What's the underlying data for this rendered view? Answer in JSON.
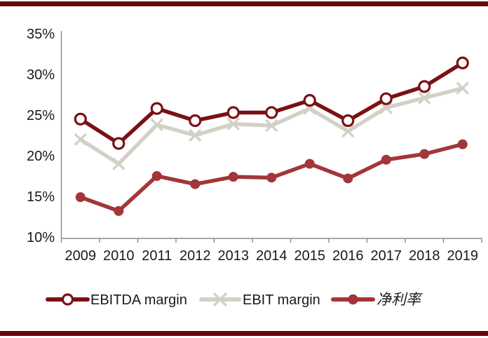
{
  "page": {
    "background": "#ffffff",
    "accent_bar_color": "#65090F",
    "axis_color": "#8a8a8a",
    "text_color": "#1a1a1a"
  },
  "chart_data": {
    "type": "line",
    "title": "",
    "xlabel": "",
    "ylabel": "",
    "categories": [
      "2009",
      "2010",
      "2011",
      "2012",
      "2013",
      "2014",
      "2015",
      "2016",
      "2017",
      "2018",
      "2019"
    ],
    "series": [
      {
        "name": "EBITDA margin",
        "color": "#7A1113",
        "marker": "open-circle",
        "values": [
          24.5,
          21.5,
          25.8,
          24.3,
          25.3,
          25.3,
          26.8,
          24.3,
          27.0,
          28.5,
          31.4
        ]
      },
      {
        "name": "EBIT margin",
        "color": "#D3D1C7",
        "marker": "x-cross",
        "values": [
          22.0,
          19.0,
          23.8,
          22.5,
          23.9,
          23.7,
          25.8,
          23.0,
          25.9,
          27.1,
          28.3
        ]
      },
      {
        "name": "净利率",
        "color": "#A23638",
        "marker": "filled-circle",
        "values": [
          14.9,
          13.2,
          17.5,
          16.5,
          17.4,
          17.3,
          19.0,
          17.2,
          19.5,
          20.2,
          21.4
        ]
      }
    ],
    "ylim": [
      10,
      35
    ],
    "ytick_step": 5,
    "ytick_labels": [
      "35%",
      "30%",
      "25%",
      "20%",
      "15%",
      "10%"
    ],
    "grid": false,
    "legend_position": "bottom"
  }
}
